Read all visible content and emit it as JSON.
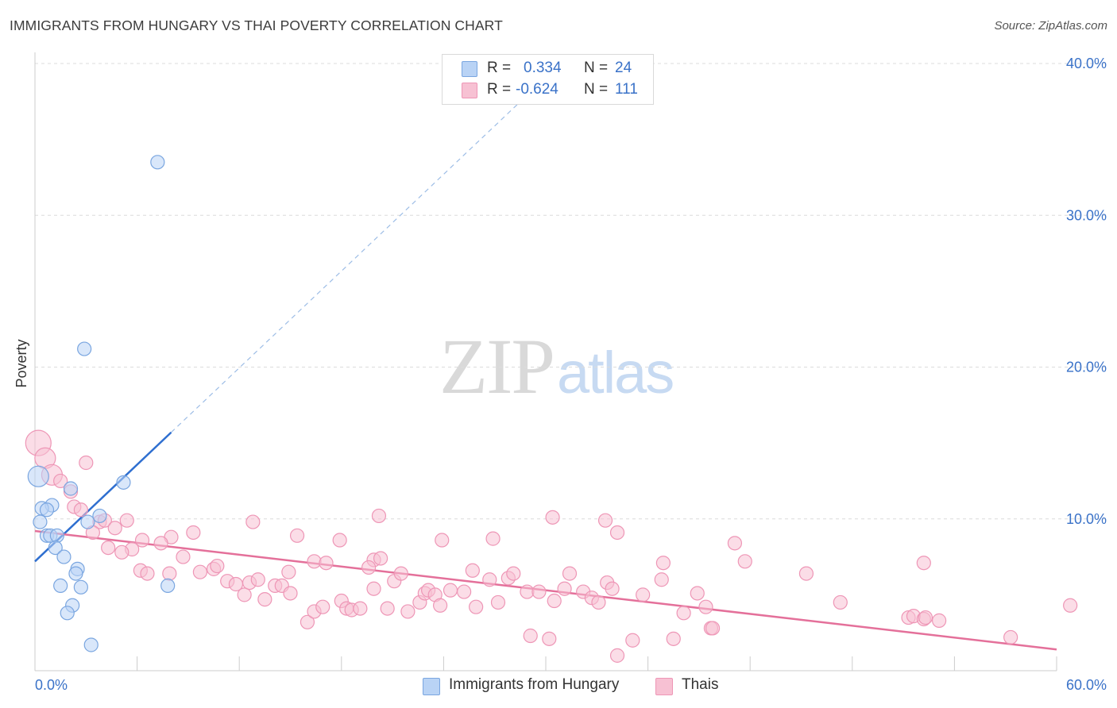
{
  "header": {
    "title": "IMMIGRANTS FROM HUNGARY VS THAI POVERTY CORRELATION CHART",
    "source": "Source: ZipAtlas.com"
  },
  "stats": {
    "hungary": {
      "r_label": "R =",
      "r_value": "0.334",
      "n_label": "N =",
      "n_value": "24"
    },
    "thais": {
      "r_label": "R =",
      "r_value": "-0.624",
      "n_label": "N =",
      "n_value": "111"
    }
  },
  "legend": {
    "hungary": "Immigrants from Hungary",
    "thais": "Thais"
  },
  "watermark": {
    "zip": "ZIP",
    "atlas": "atlas"
  },
  "colors": {
    "hungary_fill": "#b9d3f5",
    "hungary_stroke": "#7aa6e0",
    "hungary_line": "#2f6fd0",
    "thais_fill": "#f7c1d3",
    "thais_stroke": "#ee96b6",
    "thais_line": "#e4709a",
    "axis_label": "#3a72c8"
  },
  "chart_data": {
    "type": "scatter",
    "xlabel": "",
    "ylabel": "Poverty",
    "xlim": [
      0,
      60
    ],
    "ylim": [
      0,
      40
    ],
    "x_tick_labels": [
      "0.0%",
      "60.0%"
    ],
    "y_ticks": [
      10,
      20,
      30,
      40
    ],
    "y_tick_labels": [
      "10.0%",
      "20.0%",
      "30.0%",
      "40.0%"
    ],
    "grid": true,
    "legend_position": "bottom-center",
    "series": [
      {
        "name": "Immigrants from Hungary",
        "r": 0.334,
        "n": 24,
        "trend": {
          "x0": 0,
          "y0": 7.2,
          "x1": 8.0,
          "y1": 15.7,
          "dashed_to_x": 28.5
        },
        "points": [
          [
            7.2,
            33.5
          ],
          [
            2.9,
            21.2
          ],
          [
            0.2,
            12.8
          ],
          [
            5.2,
            12.4
          ],
          [
            2.1,
            12.0
          ],
          [
            1.0,
            10.9
          ],
          [
            0.4,
            10.7
          ],
          [
            0.7,
            10.6
          ],
          [
            3.8,
            10.2
          ],
          [
            0.3,
            9.8
          ],
          [
            3.1,
            9.8
          ],
          [
            0.7,
            8.9
          ],
          [
            0.9,
            8.9
          ],
          [
            1.3,
            8.9
          ],
          [
            1.2,
            8.1
          ],
          [
            1.7,
            7.5
          ],
          [
            2.5,
            6.7
          ],
          [
            2.4,
            6.4
          ],
          [
            7.8,
            5.6
          ],
          [
            1.5,
            5.6
          ],
          [
            2.7,
            5.5
          ],
          [
            2.2,
            4.3
          ],
          [
            1.9,
            3.8
          ],
          [
            3.3,
            1.7
          ]
        ]
      },
      {
        "name": "Thais",
        "r": -0.624,
        "n": 111,
        "trend": {
          "x0": 0,
          "y0": 9.2,
          "x1": 60,
          "y1": 1.4
        },
        "points": [
          [
            0.2,
            15.0
          ],
          [
            0.6,
            14.0
          ],
          [
            1.0,
            12.9
          ],
          [
            1.5,
            12.5
          ],
          [
            3.0,
            13.7
          ],
          [
            2.1,
            11.8
          ],
          [
            2.3,
            10.8
          ],
          [
            2.7,
            10.6
          ],
          [
            3.8,
            9.8
          ],
          [
            4.1,
            9.9
          ],
          [
            3.4,
            9.1
          ],
          [
            4.7,
            9.4
          ],
          [
            5.4,
            9.9
          ],
          [
            9.3,
            9.1
          ],
          [
            12.8,
            9.8
          ],
          [
            15.4,
            8.9
          ],
          [
            17.9,
            8.6
          ],
          [
            8.0,
            8.8
          ],
          [
            6.3,
            8.6
          ],
          [
            4.3,
            8.1
          ],
          [
            7.4,
            8.4
          ],
          [
            5.7,
            8.0
          ],
          [
            5.1,
            7.8
          ],
          [
            8.7,
            7.5
          ],
          [
            16.4,
            7.2
          ],
          [
            17.1,
            7.1
          ],
          [
            19.9,
            7.3
          ],
          [
            20.2,
            10.2
          ],
          [
            23.9,
            8.6
          ],
          [
            26.9,
            8.7
          ],
          [
            30.4,
            10.1
          ],
          [
            34.2,
            9.1
          ],
          [
            41.1,
            8.4
          ],
          [
            6.2,
            6.6
          ],
          [
            6.6,
            6.4
          ],
          [
            7.9,
            6.4
          ],
          [
            9.7,
            6.5
          ],
          [
            10.5,
            6.7
          ],
          [
            10.7,
            6.9
          ],
          [
            11.3,
            5.9
          ],
          [
            11.8,
            5.7
          ],
          [
            12.3,
            5.0
          ],
          [
            12.6,
            5.8
          ],
          [
            13.1,
            6.0
          ],
          [
            13.5,
            4.7
          ],
          [
            14.1,
            5.6
          ],
          [
            14.5,
            5.6
          ],
          [
            14.9,
            6.5
          ],
          [
            15.0,
            5.1
          ],
          [
            16.0,
            3.2
          ],
          [
            16.4,
            3.9
          ],
          [
            16.9,
            4.2
          ],
          [
            18.0,
            4.6
          ],
          [
            18.3,
            4.1
          ],
          [
            18.6,
            4.0
          ],
          [
            19.1,
            4.1
          ],
          [
            19.6,
            6.8
          ],
          [
            19.9,
            5.4
          ],
          [
            20.3,
            7.4
          ],
          [
            20.7,
            4.1
          ],
          [
            21.1,
            5.9
          ],
          [
            21.5,
            6.4
          ],
          [
            21.9,
            3.9
          ],
          [
            22.6,
            4.5
          ],
          [
            22.9,
            5.1
          ],
          [
            23.1,
            5.3
          ],
          [
            23.5,
            5.0
          ],
          [
            23.8,
            4.3
          ],
          [
            24.4,
            5.3
          ],
          [
            25.2,
            5.2
          ],
          [
            25.7,
            6.6
          ],
          [
            25.9,
            4.2
          ],
          [
            26.7,
            6.0
          ],
          [
            27.2,
            4.5
          ],
          [
            27.8,
            6.1
          ],
          [
            28.1,
            6.4
          ],
          [
            28.9,
            5.2
          ],
          [
            29.1,
            2.3
          ],
          [
            29.6,
            5.2
          ],
          [
            30.2,
            2.1
          ],
          [
            30.5,
            4.6
          ],
          [
            31.1,
            5.4
          ],
          [
            31.4,
            6.4
          ],
          [
            32.2,
            5.2
          ],
          [
            32.7,
            4.8
          ],
          [
            33.1,
            4.5
          ],
          [
            33.6,
            5.8
          ],
          [
            33.9,
            5.4
          ],
          [
            34.2,
            1.0
          ],
          [
            35.1,
            2.0
          ],
          [
            35.7,
            5.0
          ],
          [
            36.8,
            6.0
          ],
          [
            36.9,
            7.1
          ],
          [
            37.5,
            2.1
          ],
          [
            38.1,
            3.8
          ],
          [
            38.9,
            5.1
          ],
          [
            39.4,
            4.2
          ],
          [
            39.7,
            2.8
          ],
          [
            39.8,
            2.8
          ],
          [
            45.3,
            6.4
          ],
          [
            47.3,
            4.5
          ],
          [
            51.3,
            3.5
          ],
          [
            51.6,
            3.6
          ],
          [
            52.2,
            3.4
          ],
          [
            52.3,
            3.5
          ],
          [
            53.1,
            3.3
          ],
          [
            52.2,
            7.1
          ],
          [
            57.3,
            2.2
          ],
          [
            60.8,
            4.3
          ],
          [
            41.7,
            7.2
          ],
          [
            33.5,
            9.9
          ]
        ]
      }
    ]
  }
}
